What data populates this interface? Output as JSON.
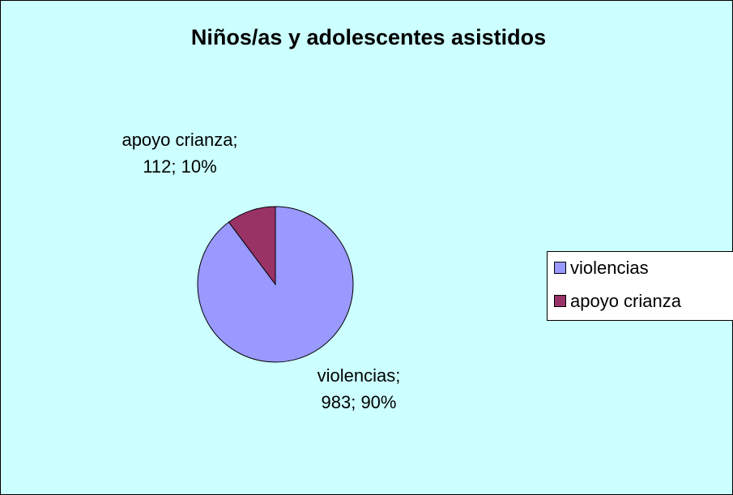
{
  "chart_data": {
    "type": "pie",
    "title": "Niños/as y adolescentes asistidos",
    "categories": [
      "violencias",
      "apoyo crianza"
    ],
    "values": [
      983,
      112
    ],
    "value_labels": [
      "violencias; 983; 90%",
      "apoyo crianza; 112; 10%"
    ],
    "colors": [
      "#9999ff",
      "#993366"
    ],
    "legend": "right"
  }
}
